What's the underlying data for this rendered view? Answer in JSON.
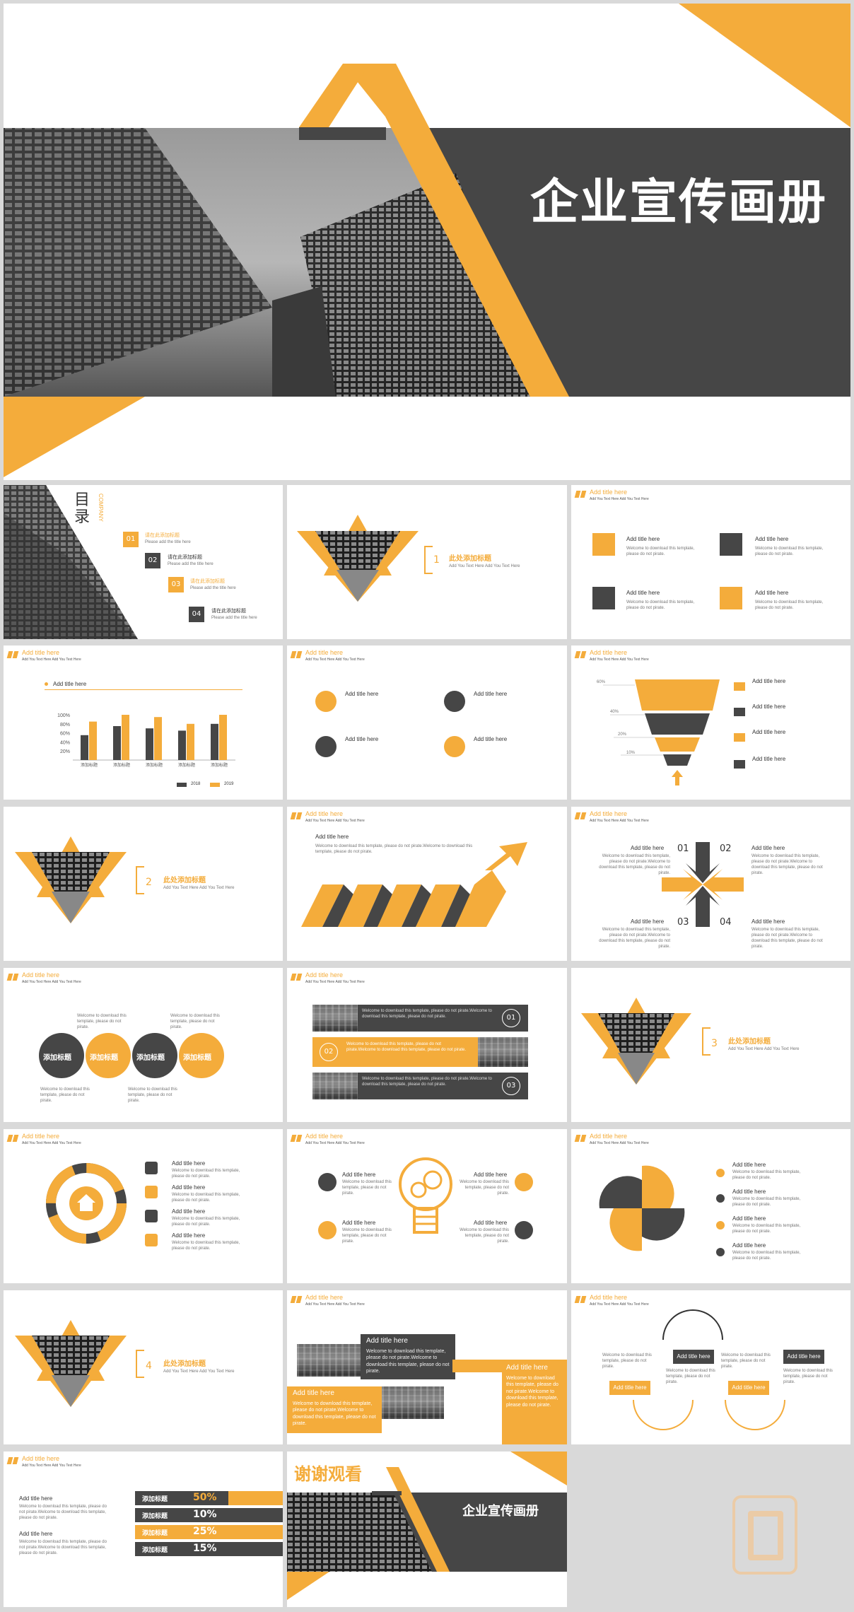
{
  "colors": {
    "accent": "#f4ac3b",
    "dark": "#464646",
    "background": "#d9d9d9"
  },
  "hero": {
    "title": "企业宣传画册"
  },
  "toc": {
    "title": "目录",
    "company": "COMPANY",
    "items": [
      {
        "num": "01",
        "title": "请在此添加标题",
        "sub": "Please add the title here"
      },
      {
        "num": "02",
        "title": "请在此添加标题",
        "sub": "Please add the title here"
      },
      {
        "num": "03",
        "title": "请在此添加标题",
        "sub": "Please add the title here"
      },
      {
        "num": "04",
        "title": "请在此添加标题",
        "sub": "Please add the title here"
      }
    ]
  },
  "header": {
    "title": "Add title here",
    "sub": "Add You Text Here Add You Text Here"
  },
  "section": {
    "title": "此处添加标题",
    "sub": "Add You Text Here Add You Text Here",
    "nums": [
      "1",
      "2",
      "3",
      "4"
    ]
  },
  "generic": {
    "add_title": "Add title here",
    "welcome": "Welcome to download this template, please do not pirate.",
    "welcome_long": "Welcome to download this template, please do not pirate.Welcome to download this template, please do not pirate.",
    "add_title_label": "添加标题"
  },
  "chart_data": {
    "type": "bar",
    "title": "Add title here",
    "categories": [
      "添加标题",
      "添加标题",
      "添加标题",
      "添加标题",
      "添加标题"
    ],
    "series": [
      {
        "name": "2018",
        "values": [
          55,
          75,
          70,
          65,
          80
        ]
      },
      {
        "name": "2019",
        "values": [
          85,
          100,
          95,
          80,
          100
        ]
      }
    ],
    "yticks": [
      "100%",
      "80%",
      "60%",
      "40%",
      "20%"
    ],
    "ylim": [
      0,
      100
    ]
  },
  "funnel": {
    "labels": [
      "60%",
      "40%",
      "20%",
      "10%"
    ]
  },
  "cross": {
    "nums": [
      "01",
      "02",
      "03",
      "04"
    ]
  },
  "banner": {
    "nums": [
      "01",
      "02",
      "03"
    ]
  },
  "pct": {
    "values": [
      "50%",
      "10%",
      "25%",
      "15%"
    ]
  },
  "thanks": {
    "title": "谢谢观看",
    "sub": "企业宣传画册"
  }
}
